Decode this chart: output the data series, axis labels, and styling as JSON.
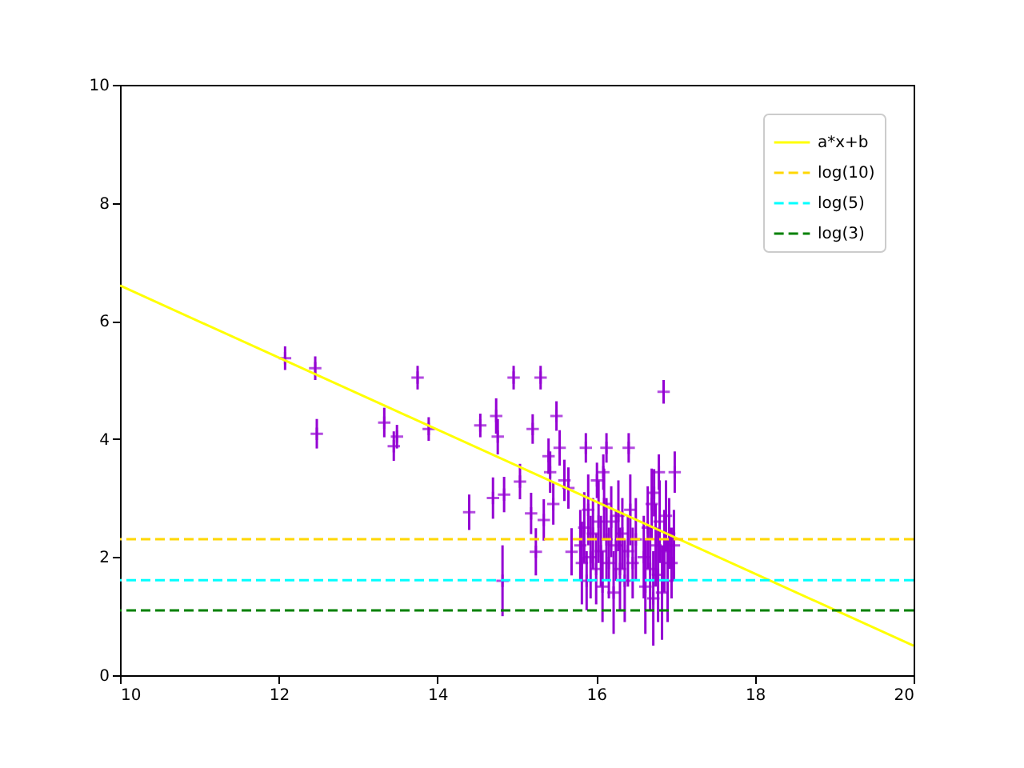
{
  "chart_data": {
    "type": "scatter",
    "xlim": [
      10,
      20
    ],
    "xticks": [
      10,
      12,
      14,
      16,
      18,
      20
    ],
    "ylim": [
      0,
      10
    ],
    "yticks": [
      0,
      2,
      4,
      6,
      8,
      10
    ],
    "grid": false,
    "legend": "top right",
    "series": [
      {
        "color": "#9400d3",
        "marker": "cross",
        "x": [
          12.08,
          12.46,
          12.48,
          13.33,
          13.45,
          13.49,
          13.75,
          13.89,
          14.4,
          14.54,
          14.7,
          14.74,
          14.76,
          14.82,
          14.84,
          14.96,
          15.04,
          15.18,
          15.2,
          15.24,
          15.3,
          15.34,
          15.4,
          15.42,
          15.46,
          15.5,
          15.54,
          15.6,
          15.65,
          15.69,
          15.87,
          16.01,
          16.09,
          16.13,
          16.41,
          16.85,
          16.79,
          16.99,
          16.73,
          15.8,
          15.82,
          15.85,
          15.88,
          15.9,
          15.93,
          15.96,
          16.0,
          16.03,
          16.06,
          16.08,
          16.1,
          16.13,
          16.16,
          16.19,
          16.22,
          16.25,
          16.28,
          16.3,
          16.33,
          16.36,
          16.4,
          16.43,
          16.46,
          16.5,
          16.6,
          16.62,
          16.65,
          16.68,
          16.7,
          16.72,
          16.75,
          16.78,
          16.8,
          16.83,
          16.86,
          16.88,
          16.9,
          16.92,
          16.95,
          16.98
        ],
        "values": [
          5.37,
          5.2,
          4.09,
          4.28,
          3.88,
          4.04,
          5.04,
          4.17,
          2.76,
          4.23,
          3.0,
          4.39,
          4.04,
          1.6,
          3.06,
          5.04,
          3.28,
          2.74,
          4.17,
          2.09,
          5.04,
          2.63,
          3.71,
          3.44,
          2.9,
          4.39,
          3.85,
          3.3,
          3.17,
          2.09,
          3.85,
          3.3,
          3.44,
          3.85,
          3.85,
          4.8,
          3.44,
          3.44,
          3.09,
          2.2,
          1.9,
          2.5,
          1.6,
          2.8,
          2.0,
          2.4,
          1.8,
          2.6,
          2.1,
          1.5,
          2.9,
          2.3,
          1.9,
          2.6,
          1.4,
          2.2,
          2.7,
          1.8,
          2.4,
          1.6,
          2.1,
          2.8,
          1.9,
          2.3,
          2.0,
          1.5,
          2.5,
          1.8,
          2.9,
          1.3,
          2.2,
          1.7,
          2.6,
          1.4,
          2.1,
          2.7,
          1.6,
          2.4,
          1.9,
          2.2
        ],
        "errors": [
          0.2,
          0.2,
          0.25,
          0.25,
          0.25,
          0.2,
          0.2,
          0.2,
          0.3,
          0.2,
          0.35,
          0.3,
          0.3,
          0.6,
          0.3,
          0.2,
          0.3,
          0.35,
          0.25,
          0.4,
          0.2,
          0.35,
          0.3,
          0.35,
          0.35,
          0.25,
          0.3,
          0.35,
          0.35,
          0.4,
          0.25,
          0.3,
          0.3,
          0.25,
          0.25,
          0.2,
          0.3,
          0.35,
          0.4,
          0.6,
          0.7,
          0.6,
          0.5,
          0.6,
          0.7,
          0.6,
          0.6,
          0.7,
          0.6,
          0.6,
          0.6,
          0.7,
          0.6,
          0.6,
          0.7,
          0.6,
          0.6,
          0.7,
          0.6,
          0.7,
          0.6,
          0.6,
          0.6,
          0.7,
          0.7,
          0.8,
          0.7,
          0.7,
          0.6,
          0.8,
          0.7,
          0.8,
          0.7,
          0.8,
          0.7,
          0.6,
          0.7,
          0.6,
          0.6,
          0.6
        ]
      },
      {
        "type": "line",
        "name": "a*x+b",
        "color": "#ffff00",
        "line_style": "solid",
        "x": [
          10,
          20
        ],
        "values": [
          6.6,
          0.5
        ]
      }
    ],
    "ref_lines": [
      {
        "axis": "y",
        "value": 2.303,
        "label": "log(10)",
        "color": "#ffd700",
        "line_style": "dashed"
      },
      {
        "axis": "y",
        "value": 1.609,
        "label": "log(5)",
        "color": "#00ffff",
        "line_style": "dashed"
      },
      {
        "axis": "y",
        "value": 1.099,
        "label": "log(3)",
        "color": "#008000",
        "line_style": "dashed"
      }
    ]
  }
}
